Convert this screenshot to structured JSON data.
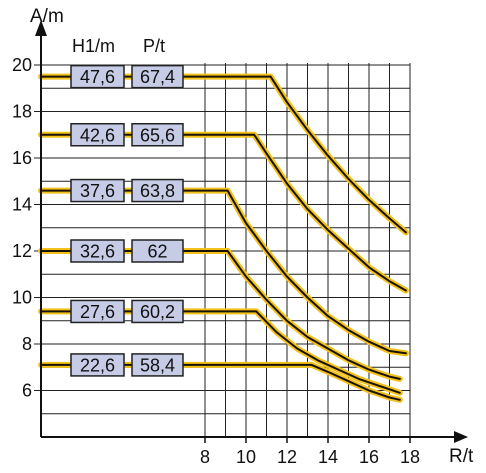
{
  "chart_data": {
    "type": "line",
    "xlabel": "R/t",
    "ylabel": "A/m",
    "xlim": [
      0,
      18
    ],
    "ylim": [
      4,
      20
    ],
    "x_ticks": [
      8,
      10,
      12,
      14,
      16,
      18
    ],
    "y_ticks": [
      6,
      8,
      10,
      12,
      14,
      16,
      18,
      20
    ],
    "grid": true,
    "grid_x_start": 8,
    "column_headers": [
      "H1/m",
      "P/t"
    ],
    "series": [
      {
        "h": "47,6",
        "p": "67,4",
        "points": [
          [
            0,
            19.5
          ],
          [
            11.2,
            19.5
          ],
          [
            12.0,
            18.4
          ],
          [
            13.0,
            17.2
          ],
          [
            14.0,
            16.1
          ],
          [
            15.0,
            15.1
          ],
          [
            16.0,
            14.2
          ],
          [
            17.0,
            13.4
          ],
          [
            17.8,
            12.8
          ]
        ]
      },
      {
        "h": "42,6",
        "p": "65,6",
        "points": [
          [
            0,
            17.0
          ],
          [
            10.4,
            17.0
          ],
          [
            11.0,
            16.2
          ],
          [
            12.0,
            14.9
          ],
          [
            13.0,
            13.8
          ],
          [
            14.0,
            12.9
          ],
          [
            15.0,
            12.1
          ],
          [
            16.0,
            11.3
          ],
          [
            17.0,
            10.7
          ],
          [
            17.8,
            10.3
          ]
        ]
      },
      {
        "h": "37,6",
        "p": "63,8",
        "points": [
          [
            0,
            14.6
          ],
          [
            9.1,
            14.6
          ],
          [
            10.0,
            13.2
          ],
          [
            11.0,
            12.0
          ],
          [
            12.0,
            10.9
          ],
          [
            13.0,
            10.0
          ],
          [
            14.0,
            9.2
          ],
          [
            15.0,
            8.6
          ],
          [
            16.0,
            8.1
          ],
          [
            17.0,
            7.7
          ],
          [
            17.8,
            7.6
          ]
        ]
      },
      {
        "h": "32,6",
        "p": "62",
        "points": [
          [
            0,
            12.0
          ],
          [
            9.1,
            12.0
          ],
          [
            10.0,
            10.9
          ],
          [
            11.0,
            9.9
          ],
          [
            12.0,
            9.0
          ],
          [
            13.0,
            8.3
          ],
          [
            14.0,
            7.8
          ],
          [
            15.0,
            7.3
          ],
          [
            16.0,
            6.9
          ],
          [
            17.0,
            6.6
          ],
          [
            17.5,
            6.5
          ]
        ]
      },
      {
        "h": "27,6",
        "p": "60,2",
        "points": [
          [
            0,
            9.4
          ],
          [
            10.5,
            9.4
          ],
          [
            11.5,
            8.5
          ],
          [
            12.5,
            7.8
          ],
          [
            13.5,
            7.3
          ],
          [
            14.5,
            6.9
          ],
          [
            15.5,
            6.5
          ],
          [
            16.5,
            6.2
          ],
          [
            17.5,
            5.9
          ]
        ]
      },
      {
        "h": "22,6",
        "p": "58,4",
        "points": [
          [
            0,
            7.1
          ],
          [
            13.2,
            7.1
          ],
          [
            14.0,
            6.8
          ],
          [
            15.0,
            6.4
          ],
          [
            16.0,
            6.0
          ],
          [
            17.0,
            5.7
          ],
          [
            17.5,
            5.6
          ]
        ]
      }
    ],
    "colors": {
      "line_glow": "#f2c21a",
      "line_core": "#1a1208",
      "box_fill": "#c6cbe6",
      "box_stroke": "#222222",
      "grid": "#222222",
      "axis": "#111111"
    }
  }
}
